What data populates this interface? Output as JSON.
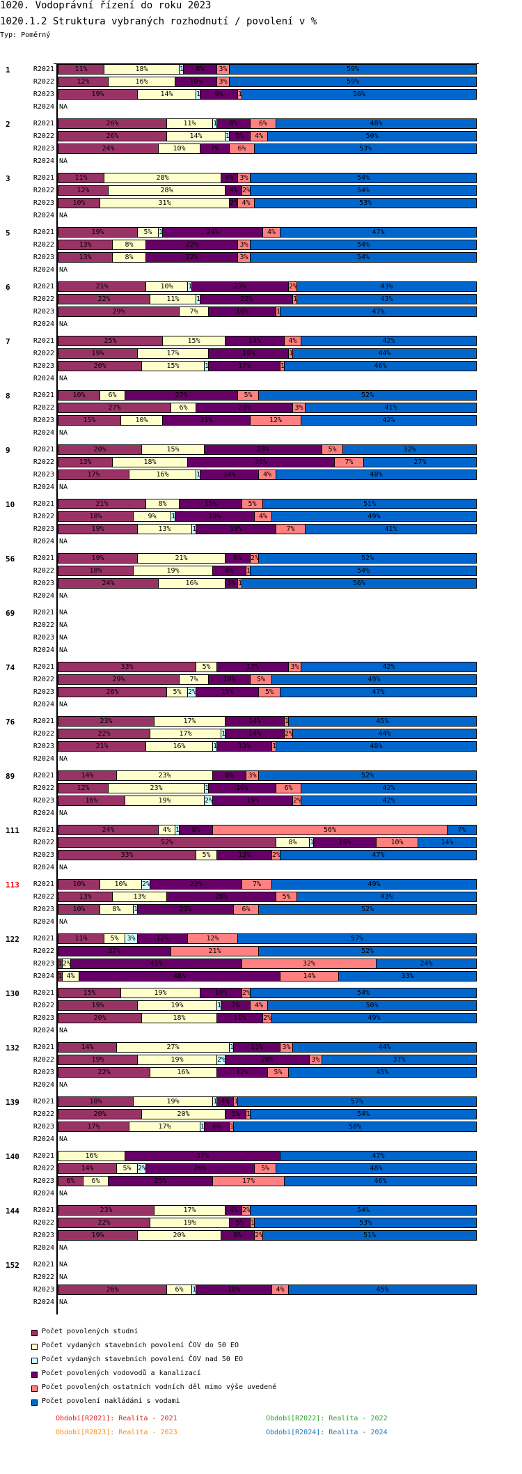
{
  "header": {
    "title": "1020. Vodoprávní řízení do roku 2023",
    "subtitle": "1020.1.2 Struktura vybraných rozhodnutí / povolení v %",
    "type_label": "Typ: Poměrný"
  },
  "chart_data": {
    "type": "bar",
    "orientation": "horizontal",
    "stacked": "percent",
    "title": "1020.1.2 Struktura vybraných rozhodnutí / povolení v %",
    "na_label": "NA",
    "series": [
      {
        "name": "Počet povolených studní",
        "color": "#993366"
      },
      {
        "name": "Počet vydaných stavebních povolení ČOV do 50 EO",
        "color": "#ffffcc"
      },
      {
        "name": "Počet vydaných stavebních povolení ČOV nad 50 EO",
        "color": "#ccffff"
      },
      {
        "name": "Počet povolených vodovodů a kanalizací",
        "color": "#660066"
      },
      {
        "name": "Počet povolených ostatních vodních děl mimo výše uvedené",
        "color": "#ff8080"
      },
      {
        "name": "Počet povolení nakládání s vodami",
        "color": "#0066cc"
      }
    ],
    "groups": [
      {
        "label": "1",
        "rows": [
          {
            "period": "R2021",
            "values": [
              11,
              18,
              1,
              8,
              3,
              59
            ]
          },
          {
            "period": "R2022",
            "values": [
              12,
              16,
              0,
              10,
              3,
              59
            ]
          },
          {
            "period": "R2023",
            "values": [
              19,
              14,
              1,
              9,
              1,
              56
            ]
          },
          {
            "period": "R2024",
            "values": null
          }
        ]
      },
      {
        "label": "2",
        "rows": [
          {
            "period": "R2021",
            "values": [
              26,
              11,
              1,
              8,
              6,
              48
            ]
          },
          {
            "period": "R2022",
            "values": [
              26,
              14,
              1,
              5,
              4,
              50
            ]
          },
          {
            "period": "R2023",
            "values": [
              24,
              10,
              0,
              7,
              6,
              53
            ]
          },
          {
            "period": "R2024",
            "values": null
          }
        ]
      },
      {
        "label": "3",
        "rows": [
          {
            "period": "R2021",
            "values": [
              11,
              28,
              0,
              4,
              3,
              54
            ]
          },
          {
            "period": "R2022",
            "values": [
              12,
              28,
              0,
              4,
              2,
              54
            ]
          },
          {
            "period": "R2023",
            "values": [
              10,
              31,
              0,
              2,
              4,
              53
            ]
          },
          {
            "period": "R2024",
            "values": null
          }
        ]
      },
      {
        "label": "5",
        "rows": [
          {
            "period": "R2021",
            "values": [
              19,
              5,
              1,
              24,
              4,
              47
            ]
          },
          {
            "period": "R2022",
            "values": [
              13,
              8,
              0,
              22,
              3,
              54
            ]
          },
          {
            "period": "R2023",
            "values": [
              13,
              8,
              0,
              22,
              3,
              54
            ]
          },
          {
            "period": "R2024",
            "values": null
          }
        ]
      },
      {
        "label": "6",
        "rows": [
          {
            "period": "R2021",
            "values": [
              21,
              10,
              1,
              23,
              2,
              43
            ]
          },
          {
            "period": "R2022",
            "values": [
              22,
              11,
              1,
              22,
              1,
              43
            ]
          },
          {
            "period": "R2023",
            "values": [
              29,
              7,
              0,
              16,
              1,
              47
            ]
          },
          {
            "period": "R2024",
            "values": null
          }
        ]
      },
      {
        "label": "7",
        "rows": [
          {
            "period": "R2021",
            "values": [
              25,
              15,
              0,
              14,
              4,
              42
            ]
          },
          {
            "period": "R2022",
            "values": [
              19,
              17,
              0,
              19,
              1,
              44
            ]
          },
          {
            "period": "R2023",
            "values": [
              20,
              15,
              1,
              17,
              1,
              46
            ]
          },
          {
            "period": "R2024",
            "values": null
          }
        ]
      },
      {
        "label": "8",
        "rows": [
          {
            "period": "R2021",
            "values": [
              10,
              6,
              0,
              27,
              5,
              52
            ]
          },
          {
            "period": "R2022",
            "values": [
              27,
              6,
              0,
              23,
              3,
              41
            ]
          },
          {
            "period": "R2023",
            "values": [
              15,
              10,
              0,
              21,
              12,
              42
            ]
          },
          {
            "period": "R2024",
            "values": null
          }
        ]
      },
      {
        "label": "9",
        "rows": [
          {
            "period": "R2021",
            "values": [
              20,
              15,
              0,
              28,
              5,
              32
            ]
          },
          {
            "period": "R2022",
            "values": [
              13,
              18,
              0,
              35,
              7,
              27
            ]
          },
          {
            "period": "R2023",
            "values": [
              17,
              16,
              1,
              14,
              4,
              48
            ]
          },
          {
            "period": "R2024",
            "values": null
          }
        ]
      },
      {
        "label": "10",
        "rows": [
          {
            "period": "R2021",
            "values": [
              21,
              8,
              0,
              15,
              5,
              51
            ]
          },
          {
            "period": "R2022",
            "values": [
              18,
              9,
              1,
              19,
              4,
              49
            ]
          },
          {
            "period": "R2023",
            "values": [
              19,
              13,
              1,
              19,
              7,
              41
            ]
          },
          {
            "period": "R2024",
            "values": null
          }
        ]
      },
      {
        "label": "56",
        "rows": [
          {
            "period": "R2021",
            "values": [
              19,
              21,
              0,
              6,
              2,
              52
            ]
          },
          {
            "period": "R2022",
            "values": [
              18,
              19,
              0,
              8,
              1,
              54
            ]
          },
          {
            "period": "R2023",
            "values": [
              24,
              16,
              0,
              3,
              1,
              56
            ]
          },
          {
            "period": "R2024",
            "values": null
          }
        ]
      },
      {
        "label": "69",
        "rows": [
          {
            "period": "R2021",
            "values": null
          },
          {
            "period": "R2022",
            "values": null
          },
          {
            "period": "R2023",
            "values": null
          },
          {
            "period": "R2024",
            "values": null
          }
        ]
      },
      {
        "label": "74",
        "rows": [
          {
            "period": "R2021",
            "values": [
              33,
              5,
              0,
              17,
              3,
              42
            ]
          },
          {
            "period": "R2022",
            "values": [
              29,
              7,
              0,
              10,
              5,
              49
            ]
          },
          {
            "period": "R2023",
            "values": [
              26,
              5,
              2,
              15,
              5,
              47
            ]
          },
          {
            "period": "R2024",
            "values": null
          }
        ]
      },
      {
        "label": "76",
        "rows": [
          {
            "period": "R2021",
            "values": [
              23,
              17,
              0,
              14,
              1,
              45
            ]
          },
          {
            "period": "R2022",
            "values": [
              22,
              17,
              1,
              14,
              2,
              44
            ]
          },
          {
            "period": "R2023",
            "values": [
              21,
              16,
              1,
              13,
              1,
              48
            ]
          },
          {
            "period": "R2024",
            "values": null
          }
        ]
      },
      {
        "label": "89",
        "rows": [
          {
            "period": "R2021",
            "values": [
              14,
              23,
              0,
              8,
              3,
              52
            ]
          },
          {
            "period": "R2022",
            "values": [
              12,
              23,
              1,
              16,
              6,
              42
            ]
          },
          {
            "period": "R2023",
            "values": [
              16,
              19,
              2,
              19,
              2,
              42
            ]
          },
          {
            "period": "R2024",
            "values": null
          }
        ]
      },
      {
        "label": "111",
        "rows": [
          {
            "period": "R2021",
            "values": [
              24,
              4,
              1,
              8,
              56,
              7
            ]
          },
          {
            "period": "R2022",
            "values": [
              52,
              8,
              1,
              15,
              10,
              14
            ]
          },
          {
            "period": "R2023",
            "values": [
              33,
              5,
              0,
              13,
              2,
              47
            ]
          },
          {
            "period": "R2024",
            "values": null
          }
        ]
      },
      {
        "label": "113",
        "label_color": "#ff0000",
        "rows": [
          {
            "period": "R2021",
            "values": [
              10,
              10,
              2,
              22,
              7,
              49
            ]
          },
          {
            "period": "R2022",
            "values": [
              13,
              13,
              0,
              26,
              5,
              43
            ]
          },
          {
            "period": "R2023",
            "values": [
              10,
              8,
              1,
              23,
              6,
              52
            ]
          },
          {
            "period": "R2024",
            "values": null
          }
        ]
      },
      {
        "label": "122",
        "rows": [
          {
            "period": "R2021",
            "values": [
              11,
              5,
              3,
              12,
              12,
              57
            ]
          },
          {
            "period": "R2022",
            "values": [
              0,
              0,
              0,
              27,
              21,
              52
            ]
          },
          {
            "period": "R2023",
            "values": [
              1,
              2,
              0,
              41,
              32,
              24
            ]
          },
          {
            "period": "R2024",
            "values": [
              1,
              4,
              0,
              48,
              14,
              33
            ]
          }
        ]
      },
      {
        "label": "130",
        "rows": [
          {
            "period": "R2021",
            "values": [
              15,
              19,
              0,
              10,
              2,
              54
            ]
          },
          {
            "period": "R2022",
            "values": [
              19,
              19,
              1,
              7,
              4,
              50
            ]
          },
          {
            "period": "R2023",
            "values": [
              20,
              18,
              0,
              11,
              2,
              49
            ]
          },
          {
            "period": "R2024",
            "values": null
          }
        ]
      },
      {
        "label": "132",
        "rows": [
          {
            "period": "R2021",
            "values": [
              14,
              27,
              1,
              11,
              3,
              44
            ]
          },
          {
            "period": "R2022",
            "values": [
              19,
              19,
              2,
              20,
              3,
              37
            ]
          },
          {
            "period": "R2023",
            "values": [
              22,
              16,
              0,
              12,
              5,
              45
            ]
          },
          {
            "period": "R2024",
            "values": null
          }
        ]
      },
      {
        "label": "139",
        "rows": [
          {
            "period": "R2021",
            "values": [
              18,
              19,
              1,
              4,
              1,
              57
            ]
          },
          {
            "period": "R2022",
            "values": [
              20,
              20,
              0,
              5,
              1,
              54
            ]
          },
          {
            "period": "R2023",
            "values": [
              17,
              17,
              1,
              6,
              1,
              58
            ]
          },
          {
            "period": "R2024",
            "values": null
          }
        ]
      },
      {
        "label": "140",
        "rows": [
          {
            "period": "R2021",
            "values": [
              0,
              16,
              0,
              37,
              0,
              47
            ]
          },
          {
            "period": "R2022",
            "values": [
              14,
              5,
              2,
              26,
              5,
              48
            ]
          },
          {
            "period": "R2023",
            "values": [
              6,
              6,
              0,
              25,
              17,
              46
            ]
          },
          {
            "period": "R2024",
            "values": null
          }
        ]
      },
      {
        "label": "144",
        "rows": [
          {
            "period": "R2021",
            "values": [
              23,
              17,
              0,
              4,
              2,
              54
            ]
          },
          {
            "period": "R2022",
            "values": [
              22,
              19,
              0,
              5,
              1,
              53
            ]
          },
          {
            "period": "R2023",
            "values": [
              19,
              20,
              0,
              8,
              2,
              51
            ]
          },
          {
            "period": "R2024",
            "values": null
          }
        ]
      },
      {
        "label": "152",
        "rows": [
          {
            "period": "R2021",
            "values": null
          },
          {
            "period": "R2022",
            "values": null
          },
          {
            "period": "R2023",
            "values": [
              26,
              6,
              1,
              18,
              4,
              45
            ]
          },
          {
            "period": "R2024",
            "values": null
          }
        ]
      }
    ]
  },
  "footer": [
    {
      "text": "Období[R2021]: Realita - 2021",
      "color": "#e02020"
    },
    {
      "text": "Období[R2022]: Realita - 2022",
      "color": "#2ca02c"
    },
    {
      "text": "Období[R2023]: Realita - 2023",
      "color": "#ff8c1a"
    },
    {
      "text": "Období[R2024]: Realita - 2024",
      "color": "#1f77b4"
    }
  ]
}
